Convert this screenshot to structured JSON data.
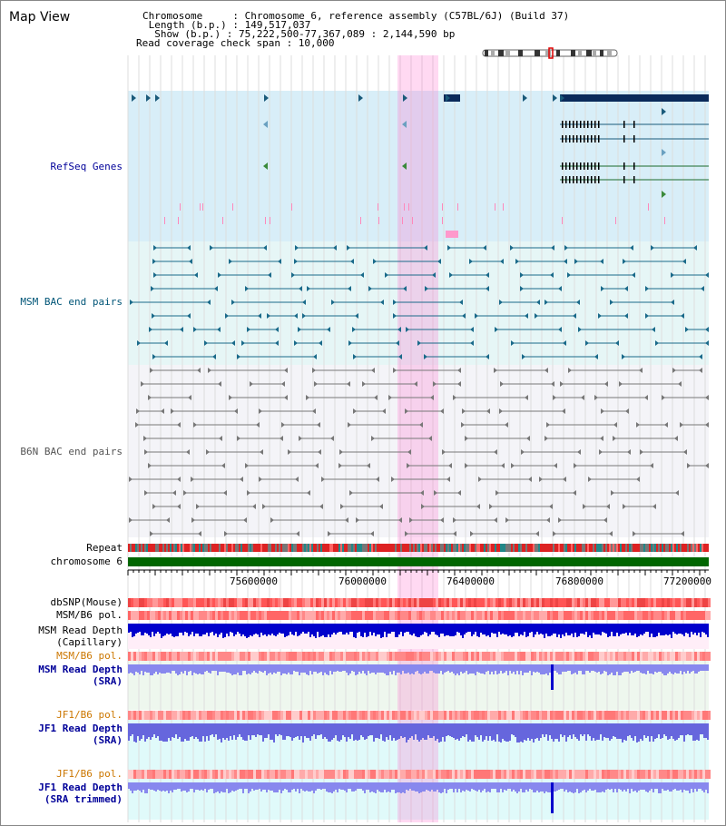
{
  "view_title": "Map View",
  "header": {
    "chromosome": "Chromosome     : Chromosome 6, reference assembly (C57BL/6J) (Build 37)",
    "length": " Length (b.p.) : 149,517,037",
    "show": "  Show (b.p.) : 75,222,500-77,367,089 : 2,144,590 bp",
    "coverage": "Read coverage check span : 10,000"
  },
  "tracks": {
    "refseq": "RefSeq Genes",
    "msm_bac": "MSM BAC end pairs",
    "b6n_bac": "B6N BAC end pairs",
    "repeat": "Repeat",
    "chromosome": "chromosome 6",
    "dbsnp": "dbSNP(Mouse)",
    "msm_b6_pol_1": "MSM/B6 pol.",
    "msm_depth_cap_1": "MSM Read Depth",
    "msm_depth_cap_2": "(Capillary)",
    "msm_b6_pol_2": "MSM/B6 pol.",
    "msm_depth_sra_1": "MSM Read Depth",
    "msm_depth_sra_2": "(SRA)",
    "jf1_b6_pol_1": "JF1/B6 pol.",
    "jf1_depth_sra_1": "JF1 Read Depth",
    "jf1_depth_sra_2": "(SRA)",
    "jf1_b6_pol_2": "JF1/B6 pol.",
    "jf1_depth_trim_1": "JF1 Read Depth",
    "jf1_depth_trim_2": "(SRA trimmed)"
  },
  "axis": {
    "ticks": [
      "75600000",
      "76000000",
      "76400000",
      "76800000",
      "77200000"
    ]
  },
  "colors": {
    "refseq_bg": "#d8eef8",
    "msm_bg": "#e6f6f6",
    "b6n_bg": "#f4f4f8",
    "highlight": "#ff66cc",
    "gene": "#1a5a7a",
    "msm_pair": "#1a6a8a",
    "b6n_pair": "#777777",
    "label_blue": "#000099",
    "label_teal": "#005577",
    "label_orange": "#cc7700",
    "chrom_bar": "#006600",
    "depth_dark": "#0000cc",
    "depth_light": "#6666ee"
  }
}
